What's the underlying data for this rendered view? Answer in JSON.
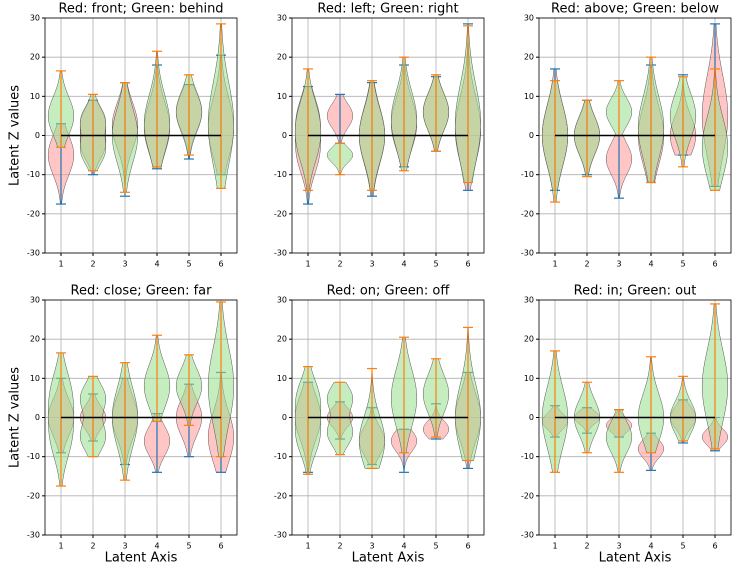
{
  "chart_data": [
    {
      "type": "violin",
      "title": "Red: front; Green: behind",
      "ylabel": "Latent Z values",
      "x": [
        1,
        2,
        3,
        4,
        5,
        6
      ],
      "xlim": [
        0.5,
        6.5
      ],
      "xticks": [
        1,
        2,
        3,
        4,
        5,
        6
      ],
      "ylim": [
        -30,
        30
      ],
      "yticks": [
        -30,
        -20,
        -10,
        0,
        10,
        20,
        30
      ],
      "grid": true,
      "hline": 0,
      "hline_color": "#000000",
      "series": [
        {
          "color": "#ff9896",
          "line_color": "#1f77b4",
          "min": [
            -17.5,
            -10,
            -15.5,
            -8.5,
            -6,
            -10
          ],
          "max": [
            3,
            9,
            13.5,
            18,
            13,
            20.5
          ],
          "modes": [
            [
              -5
            ],
            [
              -3,
              4
            ],
            [
              0,
              5
            ],
            [
              2
            ],
            [
              6
            ],
            [
              2
            ]
          ]
        },
        {
          "color": "#98df8a",
          "line_color": "#ff7f0e",
          "min": [
            -3,
            -9,
            -14.5,
            -8,
            -5,
            -13.5
          ],
          "max": [
            16.5,
            10.5,
            13.5,
            21.5,
            15.5,
            28.5
          ],
          "modes": [
            [
              5
            ],
            [
              -4,
              4
            ],
            [
              0
            ],
            [
              3
            ],
            [
              6
            ],
            [
              3
            ]
          ]
        }
      ]
    },
    {
      "type": "violin",
      "title": "Red: left; Green: right",
      "x": [
        1,
        2,
        3,
        4,
        5,
        6
      ],
      "xlim": [
        0.5,
        6.5
      ],
      "xticks": [
        1,
        2,
        3,
        4,
        5,
        6
      ],
      "ylim": [
        -30,
        30
      ],
      "yticks": [
        -30,
        -20,
        -10,
        0,
        10,
        20,
        30
      ],
      "grid": true,
      "hline": 0,
      "hline_color": "#000000",
      "series": [
        {
          "color": "#ff9896",
          "line_color": "#1f77b4",
          "min": [
            -17.5,
            -2,
            -15.5,
            -8,
            -4,
            -14
          ],
          "max": [
            12.5,
            10.5,
            13.5,
            18,
            15,
            28.5
          ],
          "modes": [
            [
              -5,
              5
            ],
            [
              5
            ],
            [
              0
            ],
            [
              3
            ],
            [
              6
            ],
            [
              -2,
              5
            ]
          ]
        },
        {
          "color": "#98df8a",
          "line_color": "#ff7f0e",
          "min": [
            -14,
            -10,
            -14,
            -9,
            -4,
            -12
          ],
          "max": [
            17,
            -2,
            14,
            20,
            15.5,
            28
          ],
          "modes": [
            [
              -3,
              5
            ],
            [
              -5
            ],
            [
              0
            ],
            [
              4
            ],
            [
              6
            ],
            [
              3
            ]
          ]
        }
      ]
    },
    {
      "type": "violin",
      "title": "Red: above; Green: below",
      "x": [
        1,
        2,
        3,
        4,
        5,
        6
      ],
      "xlim": [
        0.5,
        6.5
      ],
      "xticks": [
        1,
        2,
        3,
        4,
        5,
        6
      ],
      "ylim": [
        -30,
        30
      ],
      "yticks": [
        -30,
        -20,
        -10,
        0,
        10,
        20,
        30
      ],
      "grid": true,
      "hline": 0,
      "hline_color": "#000000",
      "series": [
        {
          "color": "#ff9896",
          "line_color": "#1f77b4",
          "min": [
            -14,
            -10,
            -16,
            -12,
            -5,
            -13
          ],
          "max": [
            17,
            9,
            0,
            18,
            15.5,
            28.5
          ],
          "modes": [
            [
              0
            ],
            [
              0
            ],
            [
              -6
            ],
            [
              0
            ],
            [
              0
            ],
            [
              5
            ]
          ]
        },
        {
          "color": "#98df8a",
          "line_color": "#ff7f0e",
          "min": [
            -17,
            -10.5,
            0,
            -12,
            -8,
            -14
          ],
          "max": [
            14,
            9,
            14,
            20,
            15,
            17
          ],
          "modes": [
            [
              0
            ],
            [
              0
            ],
            [
              6
            ],
            [
              2
            ],
            [
              5
            ],
            [
              -3
            ]
          ]
        }
      ]
    },
    {
      "type": "violin",
      "title": "Red: close; Green: far",
      "ylabel": "Latent Z values",
      "xlabel": "Latent Axis",
      "x": [
        1,
        2,
        3,
        4,
        5,
        6
      ],
      "xlim": [
        0.5,
        6.5
      ],
      "xticks": [
        1,
        2,
        3,
        4,
        5,
        6
      ],
      "ylim": [
        -30,
        30
      ],
      "yticks": [
        -30,
        -20,
        -10,
        0,
        10,
        20,
        30
      ],
      "grid": true,
      "hline": 0,
      "hline_color": "#000000",
      "series": [
        {
          "color": "#ff9896",
          "line_color": "#1f77b4",
          "min": [
            -9,
            -6,
            -12,
            -14,
            -10,
            -14
          ],
          "max": [
            10,
            6,
            10,
            1,
            8.5,
            11.5
          ],
          "modes": [
            [
              0
            ],
            [
              0
            ],
            [
              0
            ],
            [
              -6
            ],
            [
              0
            ],
            [
              -5
            ]
          ]
        },
        {
          "color": "#98df8a",
          "line_color": "#ff7f0e",
          "min": [
            -17.5,
            -10,
            -16,
            -1,
            -2,
            -10
          ],
          "max": [
            16.5,
            10.5,
            14,
            21,
            16,
            29.5
          ],
          "modes": [
            [
              -5,
              6
            ],
            [
              -5,
              5
            ],
            [
              0
            ],
            [
              8
            ],
            [
              8
            ],
            [
              8
            ]
          ]
        }
      ]
    },
    {
      "type": "violin",
      "title": "Red: on; Green: off",
      "xlabel": "Latent Axis",
      "x": [
        1,
        2,
        3,
        4,
        5,
        6
      ],
      "xlim": [
        0.5,
        6.5
      ],
      "xticks": [
        1,
        2,
        3,
        4,
        5,
        6
      ],
      "ylim": [
        -30,
        30
      ],
      "yticks": [
        -30,
        -20,
        -10,
        0,
        10,
        20,
        30
      ],
      "grid": true,
      "hline": 0,
      "hline_color": "#000000",
      "series": [
        {
          "color": "#ff9896",
          "line_color": "#1f77b4",
          "min": [
            -14,
            -5.5,
            -12,
            -14,
            -5.5,
            -13
          ],
          "max": [
            9,
            4,
            2.5,
            -3,
            3.5,
            11.5
          ],
          "modes": [
            [
              0
            ],
            [
              0
            ],
            [
              -6
            ],
            [
              -6
            ],
            [
              -3
            ],
            [
              0
            ]
          ]
        },
        {
          "color": "#98df8a",
          "line_color": "#ff7f0e",
          "min": [
            -14.5,
            -9.5,
            -13,
            -9,
            -5,
            -11
          ],
          "max": [
            13,
            9,
            12.5,
            20.5,
            15,
            23
          ],
          "modes": [
            [
              -5,
              5
            ],
            [
              -4,
              5
            ],
            [
              -6
            ],
            [
              5
            ],
            [
              6
            ],
            [
              0
            ]
          ]
        }
      ]
    },
    {
      "type": "violin",
      "title": "Red: in; Green: out",
      "xlabel": "Latent Axis",
      "x": [
        1,
        2,
        3,
        4,
        5,
        6
      ],
      "xlim": [
        0.5,
        6.5
      ],
      "xticks": [
        1,
        2,
        3,
        4,
        5,
        6
      ],
      "ylim": [
        -30,
        30
      ],
      "yticks": [
        -30,
        -20,
        -10,
        0,
        10,
        20,
        30
      ],
      "grid": true,
      "hline": 0,
      "hline_color": "#000000",
      "series": [
        {
          "color": "#ff9896",
          "line_color": "#1f77b4",
          "min": [
            -5,
            -4,
            -5,
            -13.5,
            -6.5,
            -8.5
          ],
          "max": [
            3,
            2.5,
            2,
            -4,
            4.5,
            0
          ],
          "modes": [
            [
              -1
            ],
            [
              0
            ],
            [
              -2
            ],
            [
              -8
            ],
            [
              0
            ],
            [
              -5
            ]
          ]
        },
        {
          "color": "#98df8a",
          "line_color": "#ff7f0e",
          "min": [
            -14,
            -9,
            -14,
            -9,
            -6,
            -8
          ],
          "max": [
            17,
            9,
            2,
            15.5,
            10.5,
            29
          ],
          "modes": [
            [
              0
            ],
            [
              0
            ],
            [
              -5
            ],
            [
              0
            ],
            [
              0
            ],
            [
              8
            ]
          ]
        }
      ]
    }
  ]
}
